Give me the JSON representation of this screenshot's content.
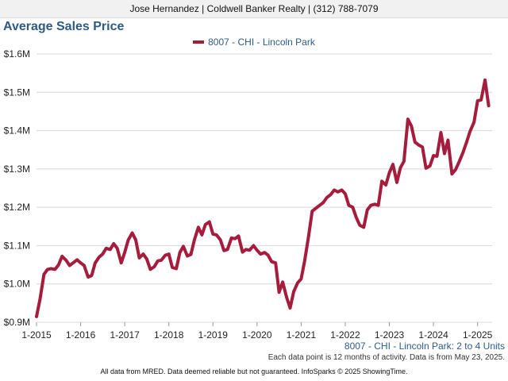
{
  "header": {
    "agent_line": "Jose Hernandez | Coldwell Banker Realty | (312) 788-7079"
  },
  "colors": {
    "series": "#a51c3c",
    "title": "#2e5a86",
    "grid": "#d8d8d8"
  },
  "chart_data": {
    "type": "line",
    "title": "Average Sales Price",
    "ylim": [
      0.9,
      1.6
    ],
    "y_ticks": [
      {
        "value": 0.9,
        "label": "$0.9M"
      },
      {
        "value": 1.0,
        "label": "$1.0M"
      },
      {
        "value": 1.1,
        "label": "$1.1M"
      },
      {
        "value": 1.2,
        "label": "$1.2M"
      },
      {
        "value": 1.3,
        "label": "$1.3M"
      },
      {
        "value": 1.4,
        "label": "$1.4M"
      },
      {
        "value": 1.5,
        "label": "$1.5M"
      },
      {
        "value": 1.6,
        "label": "$1.6M"
      }
    ],
    "xlim": [
      2015,
      2025.33
    ],
    "x_ticks": [
      {
        "value": 2015,
        "label": "1-2015"
      },
      {
        "value": 2016,
        "label": "1-2016"
      },
      {
        "value": 2017,
        "label": "1-2017"
      },
      {
        "value": 2018,
        "label": "1-2018"
      },
      {
        "value": 2019,
        "label": "1-2019"
      },
      {
        "value": 2020,
        "label": "1-2020"
      },
      {
        "value": 2021,
        "label": "1-2021"
      },
      {
        "value": 2022,
        "label": "1-2022"
      },
      {
        "value": 2023,
        "label": "1-2023"
      },
      {
        "value": 2024,
        "label": "1-2024"
      },
      {
        "value": 2025,
        "label": "1-2025"
      }
    ],
    "grid": "horizontal",
    "legend_position": "top-center",
    "series": [
      {
        "name": "8007 - CHI - Lincoln Park",
        "points": [
          [
            2015.0,
            0.915
          ],
          [
            2015.08,
            0.96
          ],
          [
            2015.17,
            1.025
          ],
          [
            2015.25,
            1.038
          ],
          [
            2015.33,
            1.04
          ],
          [
            2015.42,
            1.038
          ],
          [
            2015.5,
            1.05
          ],
          [
            2015.58,
            1.072
          ],
          [
            2015.67,
            1.062
          ],
          [
            2015.75,
            1.048
          ],
          [
            2015.83,
            1.055
          ],
          [
            2015.92,
            1.063
          ],
          [
            2016.0,
            1.055
          ],
          [
            2016.08,
            1.048
          ],
          [
            2016.17,
            1.018
          ],
          [
            2016.25,
            1.022
          ],
          [
            2016.33,
            1.055
          ],
          [
            2016.42,
            1.07
          ],
          [
            2016.5,
            1.078
          ],
          [
            2016.58,
            1.093
          ],
          [
            2016.67,
            1.09
          ],
          [
            2016.75,
            1.105
          ],
          [
            2016.83,
            1.093
          ],
          [
            2016.92,
            1.055
          ],
          [
            2017.0,
            1.082
          ],
          [
            2017.08,
            1.115
          ],
          [
            2017.17,
            1.133
          ],
          [
            2017.25,
            1.115
          ],
          [
            2017.33,
            1.068
          ],
          [
            2017.42,
            1.078
          ],
          [
            2017.5,
            1.065
          ],
          [
            2017.58,
            1.038
          ],
          [
            2017.67,
            1.045
          ],
          [
            2017.75,
            1.06
          ],
          [
            2017.83,
            1.062
          ],
          [
            2017.92,
            1.075
          ],
          [
            2018.0,
            1.078
          ],
          [
            2018.08,
            1.043
          ],
          [
            2018.17,
            1.04
          ],
          [
            2018.25,
            1.082
          ],
          [
            2018.33,
            1.098
          ],
          [
            2018.42,
            1.073
          ],
          [
            2018.5,
            1.077
          ],
          [
            2018.58,
            1.115
          ],
          [
            2018.67,
            1.148
          ],
          [
            2018.75,
            1.128
          ],
          [
            2018.83,
            1.155
          ],
          [
            2018.92,
            1.162
          ],
          [
            2019.0,
            1.13
          ],
          [
            2019.08,
            1.128
          ],
          [
            2019.17,
            1.115
          ],
          [
            2019.25,
            1.087
          ],
          [
            2019.33,
            1.09
          ],
          [
            2019.42,
            1.12
          ],
          [
            2019.5,
            1.118
          ],
          [
            2019.58,
            1.125
          ],
          [
            2019.67,
            1.083
          ],
          [
            2019.75,
            1.09
          ],
          [
            2019.83,
            1.088
          ],
          [
            2019.92,
            1.1
          ],
          [
            2020.0,
            1.088
          ],
          [
            2020.08,
            1.078
          ],
          [
            2020.17,
            1.082
          ],
          [
            2020.25,
            1.075
          ],
          [
            2020.33,
            1.058
          ],
          [
            2020.42,
            1.055
          ],
          [
            2020.5,
            0.978
          ],
          [
            2020.58,
            1.005
          ],
          [
            2020.67,
            0.965
          ],
          [
            2020.75,
            0.937
          ],
          [
            2020.83,
            0.98
          ],
          [
            2020.92,
            1.003
          ],
          [
            2021.0,
            1.013
          ],
          [
            2021.08,
            1.06
          ],
          [
            2021.17,
            1.125
          ],
          [
            2021.25,
            1.19
          ],
          [
            2021.33,
            1.197
          ],
          [
            2021.42,
            1.205
          ],
          [
            2021.5,
            1.212
          ],
          [
            2021.58,
            1.225
          ],
          [
            2021.67,
            1.233
          ],
          [
            2021.75,
            1.245
          ],
          [
            2021.83,
            1.24
          ],
          [
            2021.92,
            1.245
          ],
          [
            2022.0,
            1.235
          ],
          [
            2022.08,
            1.205
          ],
          [
            2022.17,
            1.2
          ],
          [
            2022.25,
            1.173
          ],
          [
            2022.33,
            1.153
          ],
          [
            2022.42,
            1.148
          ],
          [
            2022.5,
            1.193
          ],
          [
            2022.58,
            1.205
          ],
          [
            2022.67,
            1.208
          ],
          [
            2022.75,
            1.205
          ],
          [
            2022.83,
            1.268
          ],
          [
            2022.92,
            1.258
          ],
          [
            2023.0,
            1.29
          ],
          [
            2023.08,
            1.312
          ],
          [
            2023.17,
            1.265
          ],
          [
            2023.25,
            1.303
          ],
          [
            2023.33,
            1.32
          ],
          [
            2023.42,
            1.43
          ],
          [
            2023.5,
            1.412
          ],
          [
            2023.58,
            1.37
          ],
          [
            2023.67,
            1.362
          ],
          [
            2023.75,
            1.357
          ],
          [
            2023.83,
            1.302
          ],
          [
            2023.92,
            1.308
          ],
          [
            2024.0,
            1.335
          ],
          [
            2024.08,
            1.333
          ],
          [
            2024.17,
            1.395
          ],
          [
            2024.25,
            1.34
          ],
          [
            2024.33,
            1.375
          ],
          [
            2024.42,
            1.287
          ],
          [
            2024.5,
            1.298
          ],
          [
            2024.58,
            1.318
          ],
          [
            2024.67,
            1.343
          ],
          [
            2024.75,
            1.37
          ],
          [
            2024.83,
            1.398
          ],
          [
            2024.92,
            1.422
          ],
          [
            2025.0,
            1.478
          ],
          [
            2025.08,
            1.48
          ],
          [
            2025.17,
            1.532
          ],
          [
            2025.25,
            1.465
          ]
        ]
      }
    ]
  },
  "notes": {
    "series_subtitle": "8007 - CHI - Lincoln Park: 2 to 4 Units",
    "data_note": "Each data point is 12 months of activity. Data is from May 23, 2025.",
    "footer": "All data from MRED. Data deemed reliable but not guaranteed. InfoSparks © 2025 ShowingTime."
  }
}
